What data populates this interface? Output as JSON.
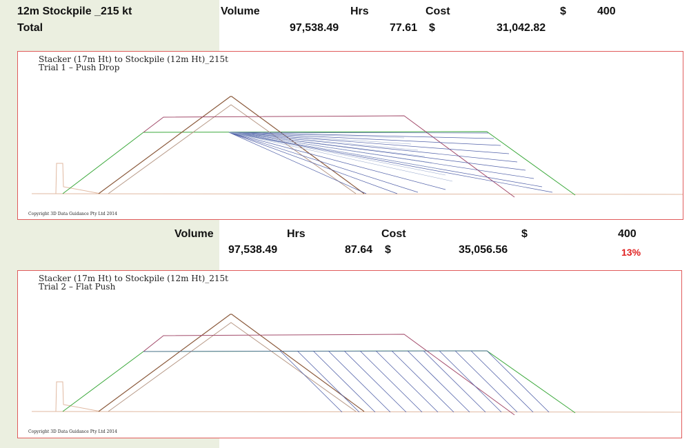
{
  "header": {
    "title": "12m Stockpile _215 kt",
    "total_label": "Total",
    "volume_label": "Volume",
    "hrs_label": "Hrs",
    "cost_label": "Cost",
    "currency_label": "$",
    "rate": "400",
    "volume": "97,538.49",
    "hrs": "77.61",
    "cost_currency": "$",
    "cost": "31,042.82"
  },
  "trial1": {
    "title_line1": "Stacker (17m Ht) to Stockpile (12m Ht)_215t",
    "title_line2": "Trial 1 – Push Drop",
    "copyright": "Copyright 3D Data Guidance Pty Ltd 2014"
  },
  "trial2_stats": {
    "volume_label": "Volume",
    "hrs_label": "Hrs",
    "cost_label": "Cost",
    "currency_label": "$",
    "rate": "400",
    "volume": "97,538.49",
    "hrs": "87.64",
    "cost_currency": "$",
    "cost": "35,056.56",
    "percent": "13%"
  },
  "trial2": {
    "title_line1": "Stacker (17m Ht) to Stockpile (12m Ht)_215t",
    "title_line2": "Trial 2 – Flat Push",
    "copyright": "Copyright 3D Data Guidance Pty Ltd 2014"
  },
  "colors": {
    "side_band": "#ebefe0",
    "panel_border": "#e05a5a",
    "green": "#3aa83a",
    "brown": "#8b5a3c",
    "tan": "#b89a88",
    "maroon": "#a24a6a",
    "blue": "#5060a8",
    "peach": "#e0b8a0",
    "highlight": "#e02020"
  }
}
